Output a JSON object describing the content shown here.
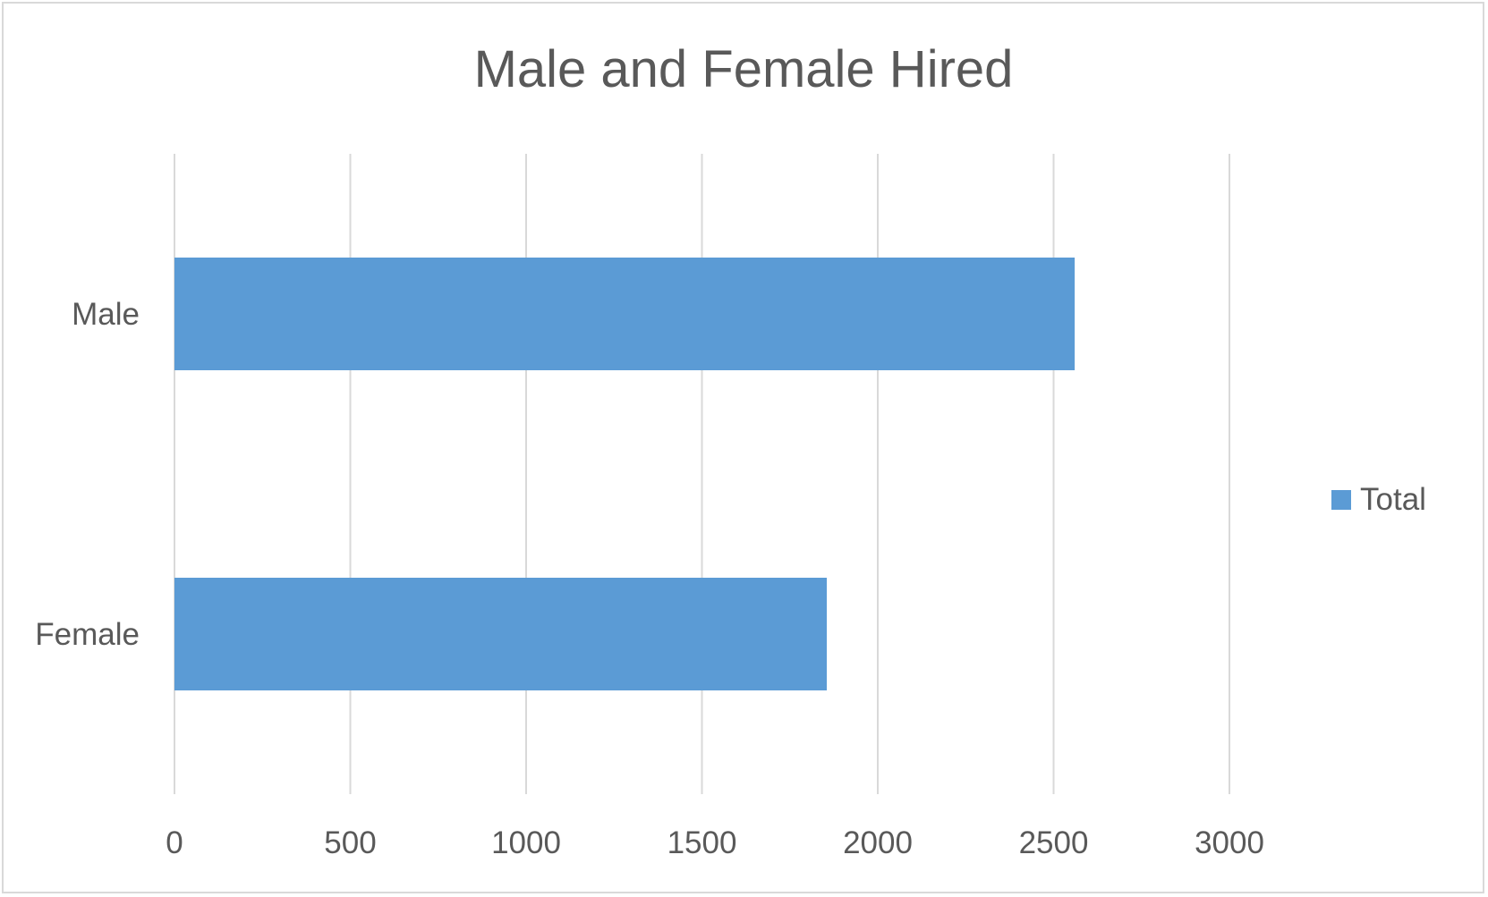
{
  "chart_data": {
    "type": "bar",
    "orientation": "horizontal",
    "title": "Male and Female Hired",
    "xlabel": "",
    "ylabel": "",
    "categories": [
      "Male",
      "Female"
    ],
    "series": [
      {
        "name": "Total",
        "values": [
          2560,
          1855
        ],
        "color": "#5b9bd5"
      }
    ],
    "xlim": [
      0,
      3000
    ],
    "x_ticks": [
      "0",
      "500",
      "1000",
      "1500",
      "2000",
      "2500",
      "3000"
    ],
    "grid": true,
    "legend": {
      "position": "right",
      "entries": [
        "Total"
      ]
    }
  }
}
